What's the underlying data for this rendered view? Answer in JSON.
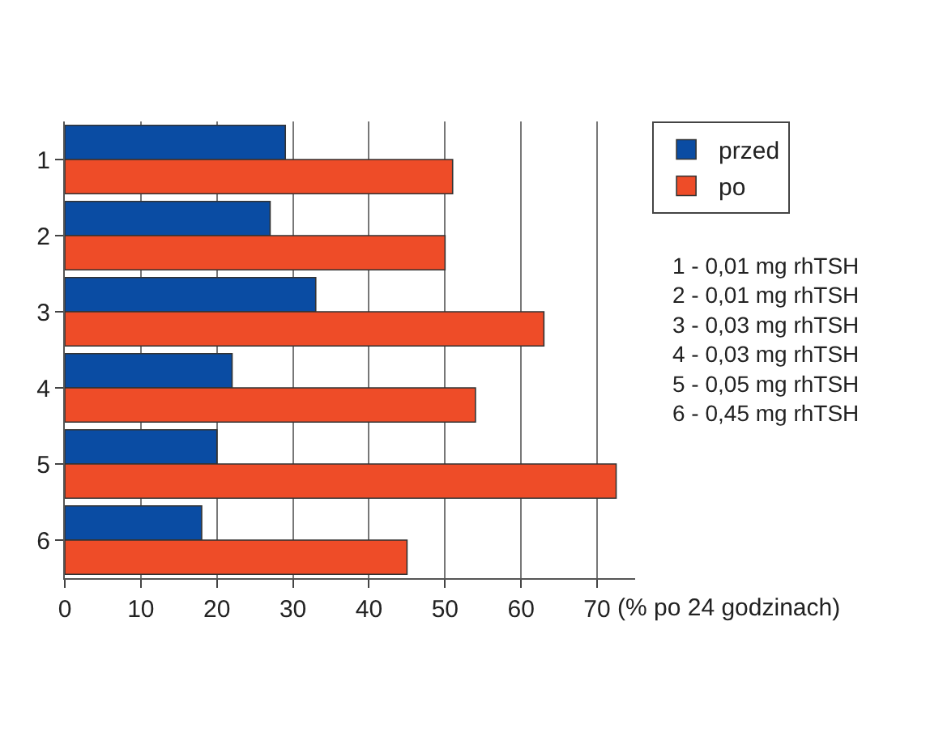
{
  "chart_data": {
    "type": "bar",
    "orientation": "horizontal",
    "categories": [
      "1",
      "2",
      "3",
      "4",
      "5",
      "6"
    ],
    "series": [
      {
        "name": "przed",
        "color": "#0a4ca3",
        "values": [
          29,
          27,
          33,
          22,
          20,
          18
        ]
      },
      {
        "name": "po",
        "color": "#ee4c28",
        "values": [
          51,
          50,
          63,
          54,
          72.5,
          45
        ]
      }
    ],
    "xlim": [
      0,
      75
    ],
    "xticks": [
      0,
      10,
      20,
      30,
      40,
      50,
      60,
      70
    ],
    "xlabel": "(% po 24 godzinach)",
    "grid": "x",
    "legend": "top right",
    "annotations": [
      "1 - 0,01 mg rhTSH\n2 - 0,01 mg rhTSH\n3 - 0,03 mg rhTSH\n4 - 0,03 mg rhTSH\n5 - 0,05 mg rhTSH\n6 - 0,45 mg rhTSH"
    ]
  }
}
